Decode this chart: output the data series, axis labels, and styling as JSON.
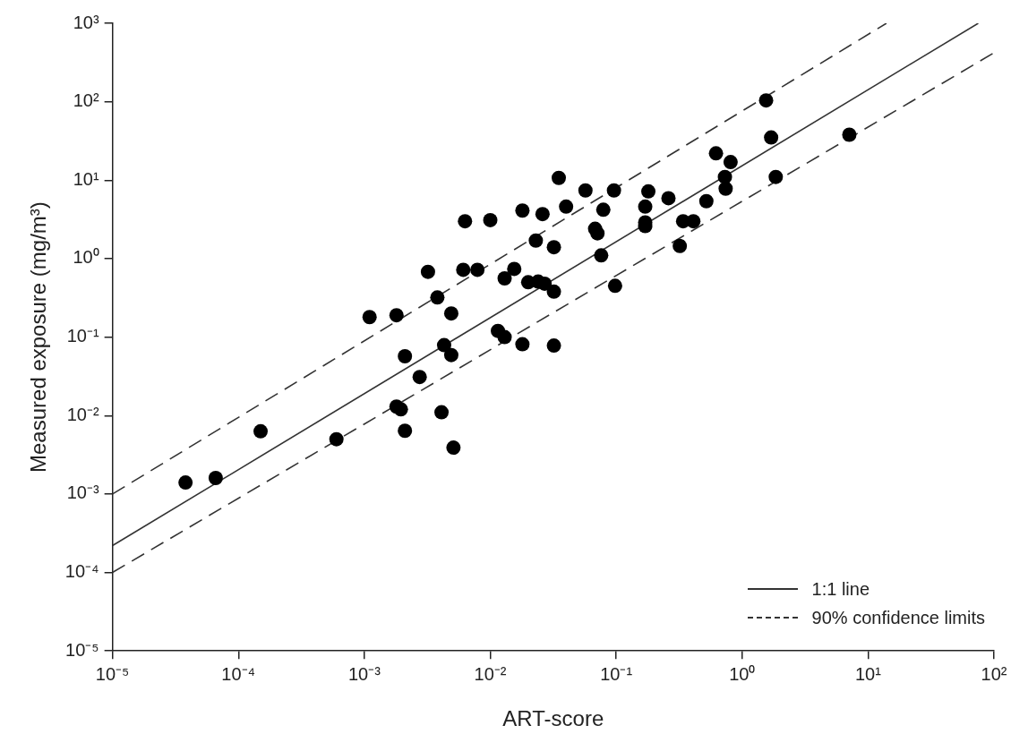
{
  "chart_data": {
    "type": "scatter",
    "xlabel": "ART-score",
    "ylabel": "Measured exposure (mg/m³)",
    "log": "xy",
    "grid": false,
    "legend": "bottom right",
    "xlim": [
      1e-05,
      100
    ],
    "ylim": [
      1e-05,
      1000
    ],
    "xticks": [
      {
        "value": 1e-05,
        "label": "10⁻⁵"
      },
      {
        "value": 0.0001,
        "label": "10⁻⁴"
      },
      {
        "value": 0.001,
        "label": "10⁻³"
      },
      {
        "value": 0.01,
        "label": "10⁻²"
      },
      {
        "value": 0.1,
        "label": "10⁻¹"
      },
      {
        "value": 1,
        "label": "10⁰"
      },
      {
        "value": 10,
        "label": "10¹"
      },
      {
        "value": 100,
        "label": "10²"
      }
    ],
    "yticks": [
      {
        "value": 1e-05,
        "label": "10⁻⁵"
      },
      {
        "value": 0.0001,
        "label": "10⁻⁴"
      },
      {
        "value": 0.001,
        "label": "10⁻³"
      },
      {
        "value": 0.01,
        "label": "10⁻²"
      },
      {
        "value": 0.1,
        "label": "10⁻¹"
      },
      {
        "value": 1,
        "label": "10⁰"
      },
      {
        "value": 10,
        "label": "10¹"
      },
      {
        "value": 100,
        "label": "10²"
      },
      {
        "value": 1000,
        "label": "10³"
      }
    ],
    "series": [
      {
        "marker": "circle",
        "color": "#000000",
        "x": [
          3.8e-05,
          6.6e-05,
          0.00015,
          0.0006,
          0.0011,
          0.0018,
          0.0032,
          0.0038,
          0.0049,
          0.0021,
          0.00275,
          0.0018,
          0.00195,
          0.0021,
          0.0041,
          0.0051,
          0.0043,
          0.0049,
          0.0063,
          0.01,
          0.0061,
          0.0079,
          0.018,
          0.026,
          0.023,
          0.013,
          0.0155,
          0.02,
          0.024,
          0.027,
          0.032,
          0.0115,
          0.013,
          0.018,
          0.032,
          0.035,
          0.032,
          0.04,
          0.057,
          0.079,
          0.068,
          0.071,
          0.076,
          0.096,
          0.098,
          0.17,
          0.17,
          0.17,
          0.18,
          0.26,
          0.32,
          0.34,
          0.41,
          0.52,
          0.62,
          0.73,
          0.74,
          0.81,
          1.55,
          1.7,
          1.85,
          7.1
        ],
        "values": [
          0.0014,
          0.0016,
          0.0063,
          0.005,
          0.18,
          0.19,
          0.68,
          0.32,
          0.2,
          0.057,
          0.031,
          0.013,
          0.012,
          0.0064,
          0.011,
          0.0039,
          0.079,
          0.059,
          3.0,
          3.1,
          0.72,
          0.72,
          4.1,
          3.7,
          1.7,
          0.56,
          0.74,
          0.5,
          0.51,
          0.48,
          0.38,
          0.12,
          0.1,
          0.081,
          0.078,
          10.7,
          1.4,
          4.6,
          7.4,
          4.2,
          2.4,
          2.1,
          1.1,
          7.4,
          0.45,
          4.6,
          2.9,
          2.6,
          7.2,
          5.9,
          1.45,
          3.0,
          3.0,
          5.4,
          22,
          11,
          7.8,
          17,
          104,
          35,
          11,
          38
        ]
      },
      {
        "type": "line",
        "name": "1:1 line",
        "marker": "none",
        "line_style": "solid",
        "color": "#333333",
        "x": [
          1e-05,
          75
        ],
        "values": [
          0.00022,
          1000
        ]
      },
      {
        "type": "line",
        "name": "90% confidence limits",
        "marker": "none",
        "line_style": "dashed",
        "color": "#333333",
        "x": [
          1e-05,
          14
        ],
        "values": [
          0.001,
          1000
        ]
      },
      {
        "type": "line",
        "marker": "none",
        "line_style": "dashed",
        "color": "#333333",
        "x": [
          1e-05,
          100
        ],
        "values": [
          0.0001,
          420
        ]
      }
    ]
  }
}
